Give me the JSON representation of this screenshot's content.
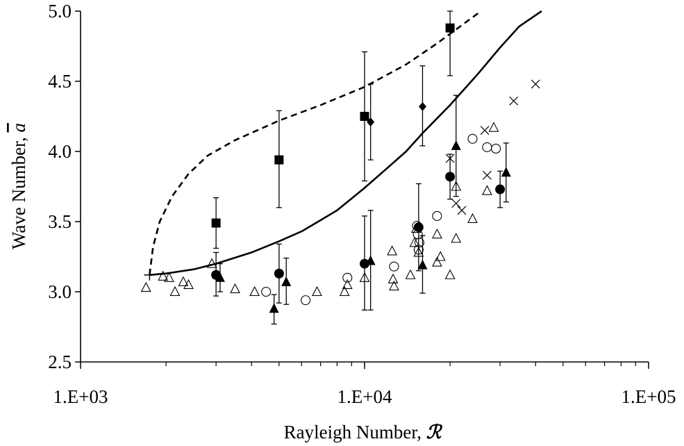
{
  "chart_data": {
    "type": "scatter",
    "title": "",
    "xlabel_prefix": "Rayleigh Number, ",
    "xlabel_symbol": "ℛ",
    "ylabel_prefix": "Wave Number, ",
    "ylabel_symbol": "a",
    "x_scale": "log",
    "xlim": [
      1000,
      100000
    ],
    "ylim": [
      2.5,
      5.0
    ],
    "x_ticks": [
      {
        "value": 1000,
        "label": "1.E+03"
      },
      {
        "value": 10000,
        "label": "1.E+04"
      },
      {
        "value": 100000,
        "label": "1.E+05"
      }
    ],
    "y_ticks": [
      {
        "value": 2.5,
        "label": "2.5"
      },
      {
        "value": 3.0,
        "label": "3.0"
      },
      {
        "value": 3.5,
        "label": "3.5"
      },
      {
        "value": 4.0,
        "label": "4.0"
      },
      {
        "value": 4.5,
        "label": "4.5"
      },
      {
        "value": 5.0,
        "label": "5.0"
      }
    ],
    "grid": false,
    "legend": "none",
    "series": [
      {
        "marker": "solid-line",
        "color": "#000000",
        "points": [
          [
            1750,
            3.12
          ],
          [
            2000,
            3.13
          ],
          [
            2500,
            3.16
          ],
          [
            3000,
            3.2
          ],
          [
            4000,
            3.28
          ],
          [
            5000,
            3.36
          ],
          [
            6000,
            3.43
          ],
          [
            7000,
            3.51
          ],
          [
            8000,
            3.58
          ],
          [
            10000,
            3.74
          ],
          [
            12000,
            3.88
          ],
          [
            14000,
            4.0
          ],
          [
            16000,
            4.13
          ],
          [
            20000,
            4.33
          ],
          [
            25000,
            4.55
          ],
          [
            30000,
            4.74
          ],
          [
            35000,
            4.89
          ],
          [
            42000,
            5.0
          ]
        ]
      },
      {
        "marker": "dashed-line",
        "color": "#000000",
        "points": [
          [
            1750,
            3.12
          ],
          [
            1800,
            3.32
          ],
          [
            1900,
            3.5
          ],
          [
            2100,
            3.68
          ],
          [
            2400,
            3.84
          ],
          [
            2800,
            3.97
          ],
          [
            3500,
            4.08
          ],
          [
            5000,
            4.22
          ],
          [
            7000,
            4.33
          ],
          [
            10000,
            4.46
          ],
          [
            14000,
            4.62
          ],
          [
            18000,
            4.77
          ],
          [
            22000,
            4.9
          ],
          [
            25700,
            5.0
          ]
        ]
      },
      {
        "marker": "plus",
        "color": "#000000",
        "points": [
          [
            1750,
            3.12
          ]
        ]
      },
      {
        "marker": "filled-square",
        "color": "#000000",
        "points": [
          {
            "x": 3000,
            "y": 3.49,
            "lo": 3.31,
            "hi": 3.67
          },
          {
            "x": 5000,
            "y": 3.94,
            "lo": 3.6,
            "hi": 4.29
          },
          {
            "x": 10000,
            "y": 4.25,
            "lo": 3.79,
            "hi": 4.71
          },
          {
            "x": 20000,
            "y": 4.88,
            "lo": 4.54,
            "hi": 5.0
          }
        ]
      },
      {
        "marker": "filled-diamond",
        "color": "#000000",
        "points": [
          {
            "x": 10500,
            "y": 4.21,
            "lo": 3.94,
            "hi": 4.48
          },
          {
            "x": 16000,
            "y": 4.32,
            "lo": 4.04,
            "hi": 4.61
          }
        ]
      },
      {
        "marker": "filled-circle",
        "color": "#000000",
        "points": [
          {
            "x": 3000,
            "y": 3.12,
            "lo": 2.97,
            "hi": 3.28
          },
          {
            "x": 5000,
            "y": 3.13,
            "lo": 2.92,
            "hi": 3.34
          },
          {
            "x": 10000,
            "y": 3.2,
            "lo": 2.87,
            "hi": 3.54
          },
          {
            "x": 15500,
            "y": 3.46,
            "lo": 3.15,
            "hi": 3.77
          },
          {
            "x": 20000,
            "y": 3.82,
            "lo": 3.66,
            "hi": 3.98
          },
          {
            "x": 30000,
            "y": 3.73,
            "lo": 3.6,
            "hi": 3.86
          }
        ]
      },
      {
        "marker": "filled-triangle",
        "color": "#000000",
        "points": [
          {
            "x": 3100,
            "y": 3.1,
            "lo": 3.0,
            "hi": 3.2
          },
          {
            "x": 4800,
            "y": 2.88,
            "lo": 2.77,
            "hi": 2.98
          },
          {
            "x": 5300,
            "y": 3.07,
            "lo": 2.91,
            "hi": 3.24
          },
          {
            "x": 10500,
            "y": 3.22,
            "lo": 2.87,
            "hi": 3.58
          },
          {
            "x": 16000,
            "y": 3.19,
            "lo": 2.99,
            "hi": 3.4
          },
          {
            "x": 21000,
            "y": 4.04,
            "lo": 3.68,
            "hi": 4.4
          },
          {
            "x": 31500,
            "y": 3.85,
            "lo": 3.64,
            "hi": 4.06
          }
        ]
      },
      {
        "marker": "open-triangle",
        "color": "#000000",
        "points": [
          [
            1700,
            3.03
          ],
          [
            1950,
            3.11
          ],
          [
            2050,
            3.1
          ],
          [
            2150,
            3.0
          ],
          [
            2300,
            3.07
          ],
          [
            2400,
            3.05
          ],
          [
            2900,
            3.2
          ],
          [
            3500,
            3.02
          ],
          [
            4100,
            3.0
          ],
          [
            6800,
            3.0
          ],
          [
            8500,
            3.0
          ],
          [
            8700,
            3.05
          ],
          [
            10000,
            3.1
          ],
          [
            12500,
            3.29
          ],
          [
            12600,
            3.09
          ],
          [
            12700,
            3.04
          ],
          [
            14500,
            3.12
          ],
          [
            15000,
            3.35
          ],
          [
            15200,
            3.45
          ],
          [
            15500,
            3.28
          ],
          [
            18000,
            3.21
          ],
          [
            18000,
            3.41
          ],
          [
            18500,
            3.25
          ],
          [
            20000,
            3.12
          ],
          [
            21000,
            3.38
          ],
          [
            21000,
            3.75
          ],
          [
            24000,
            3.52
          ],
          [
            27000,
            3.72
          ],
          [
            28500,
            4.17
          ]
        ]
      },
      {
        "marker": "open-circle",
        "color": "#000000",
        "points": [
          [
            4500,
            3.0
          ],
          [
            6200,
            2.94
          ],
          [
            8700,
            3.1
          ],
          [
            12700,
            3.18
          ],
          [
            15300,
            3.47
          ],
          [
            15400,
            3.41
          ],
          [
            15500,
            3.3
          ],
          [
            15600,
            3.35
          ],
          [
            18000,
            3.54
          ],
          [
            24000,
            4.09
          ],
          [
            27000,
            4.03
          ],
          [
            29000,
            4.02
          ]
        ]
      },
      {
        "marker": "cross",
        "color": "#000000",
        "points": [
          [
            20000,
            3.95
          ],
          [
            21000,
            3.63
          ],
          [
            22000,
            3.58
          ],
          [
            26500,
            4.15
          ],
          [
            27000,
            3.83
          ],
          [
            33500,
            4.36
          ],
          [
            40000,
            4.48
          ]
        ]
      }
    ]
  }
}
